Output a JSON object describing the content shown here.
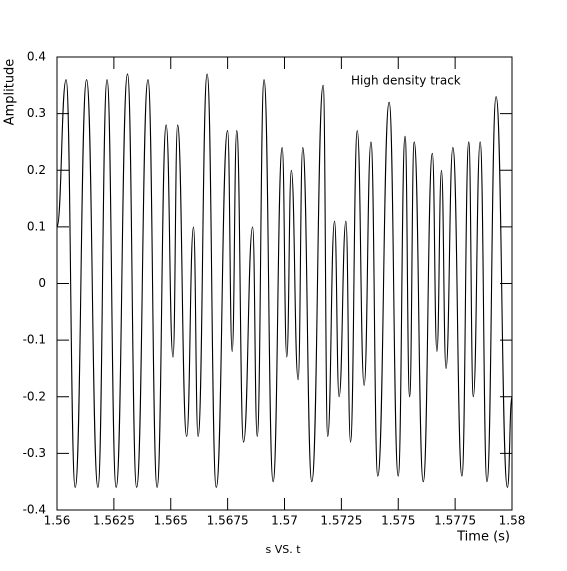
{
  "chart_data": {
    "type": "line",
    "annotation": "High density track",
    "xlabel": "Time (s)",
    "ylabel": "Amplitude",
    "caption": "s VS. t",
    "color": "#000000",
    "x": [
      1.56,
      1.5604,
      1.5608,
      1.5613,
      1.5618,
      1.5622,
      1.5626,
      1.5631,
      1.5635,
      1.564,
      1.5644,
      1.5648,
      1.5651,
      1.5653,
      1.5657,
      1.566,
      1.5662,
      1.5666,
      1.567,
      1.5675,
      1.5677,
      1.5679,
      1.5682,
      1.5686,
      1.5688,
      1.5691,
      1.5695,
      1.5699,
      1.5701,
      1.5703,
      1.5706,
      1.5708,
      1.5712,
      1.5717,
      1.5719,
      1.5722,
      1.5724,
      1.5727,
      1.5729,
      1.5732,
      1.5735,
      1.5738,
      1.5741,
      1.5746,
      1.575,
      1.5753,
      1.5755,
      1.5757,
      1.5761,
      1.5765,
      1.5767,
      1.5769,
      1.5771,
      1.5774,
      1.5778,
      1.5781,
      1.5783,
      1.5786,
      1.5789,
      1.5793,
      1.5798,
      1.58
    ],
    "values": [
      0.1,
      0.36,
      -0.36,
      0.36,
      -0.36,
      0.36,
      -0.36,
      0.37,
      -0.36,
      0.36,
      -0.36,
      0.28,
      -0.13,
      0.28,
      -0.27,
      0.1,
      -0.27,
      0.37,
      -0.36,
      0.27,
      -0.12,
      0.27,
      -0.28,
      0.1,
      -0.27,
      0.36,
      -0.35,
      0.24,
      -0.13,
      0.2,
      -0.17,
      0.24,
      -0.35,
      0.35,
      -0.27,
      0.11,
      -0.2,
      0.11,
      -0.28,
      0.27,
      -0.18,
      0.25,
      -0.34,
      0.32,
      -0.34,
      0.26,
      -0.2,
      0.25,
      -0.35,
      0.23,
      -0.12,
      0.2,
      -0.15,
      0.24,
      -0.34,
      0.25,
      -0.2,
      0.25,
      -0.35,
      0.33,
      -0.36,
      -0.2
    ],
    "xlim": [
      1.56,
      1.58
    ],
    "xticks": [
      1.56,
      1.5625,
      1.565,
      1.5675,
      1.57,
      1.5725,
      1.575,
      1.5775,
      1.58
    ],
    "ylim": [
      -0.4,
      0.4
    ],
    "yticks": [
      -0.4,
      -0.3,
      -0.2,
      -0.1,
      0,
      0.1,
      0.2,
      0.3,
      0.4
    ]
  }
}
